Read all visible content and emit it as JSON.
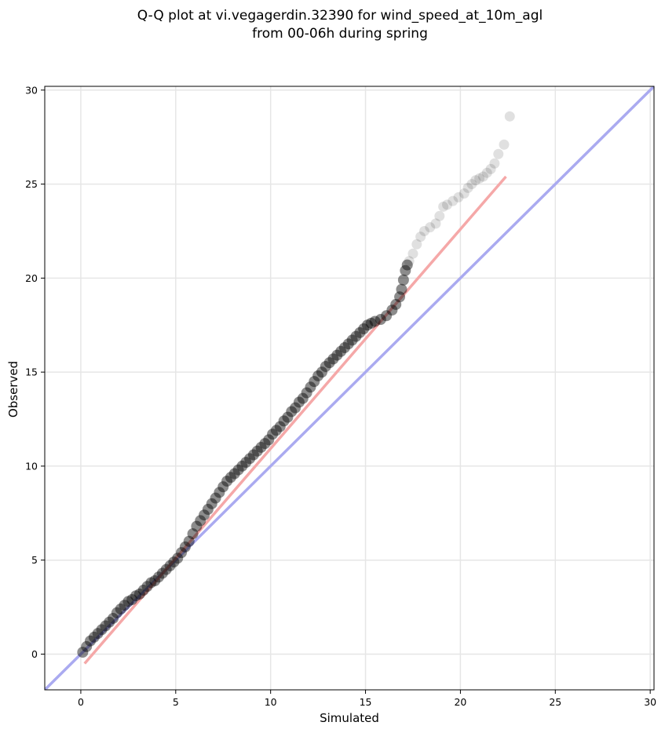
{
  "chart_data": {
    "type": "scatter",
    "title_lines": [
      "Q-Q plot at vi.vegagerdin.32390 for wind_speed_at_10m_agl",
      "from 00-06h during spring"
    ],
    "xlabel": "Simulated",
    "ylabel": "Observed",
    "xlim": [
      -1.9,
      30.2
    ],
    "ylim": [
      -1.9,
      30.2
    ],
    "xticks": [
      0,
      5,
      10,
      15,
      20,
      25,
      30
    ],
    "yticks": [
      0,
      5,
      10,
      15,
      20,
      25,
      30
    ],
    "grid": true,
    "point_color": "#000000",
    "identity_line": {
      "x": [
        -1.9,
        30.2
      ],
      "y": [
        -1.9,
        30.2
      ],
      "color": "#aaaaf0"
    },
    "fit_line": {
      "x": [
        0.2,
        22.4
      ],
      "y": [
        -0.5,
        25.4
      ],
      "color": "#f5a8a8"
    },
    "points": {
      "x": [
        0.1,
        0.3,
        0.5,
        0.7,
        0.9,
        1.1,
        1.3,
        1.5,
        1.7,
        1.9,
        2.1,
        2.3,
        2.5,
        2.7,
        2.9,
        3.1,
        3.3,
        3.5,
        3.7,
        3.9,
        4.1,
        4.3,
        4.5,
        4.7,
        4.9,
        5.1,
        5.3,
        5.5,
        5.7,
        5.9,
        6.1,
        6.3,
        6.5,
        6.7,
        6.9,
        7.1,
        7.3,
        7.5,
        7.7,
        7.9,
        8.1,
        8.3,
        8.5,
        8.7,
        8.9,
        9.1,
        9.3,
        9.5,
        9.7,
        9.9,
        10.1,
        10.3,
        10.5,
        10.7,
        10.9,
        11.1,
        11.3,
        11.5,
        11.7,
        11.9,
        12.1,
        12.3,
        12.5,
        12.7,
        12.9,
        13.1,
        13.3,
        13.5,
        13.7,
        13.9,
        14.1,
        14.3,
        14.5,
        14.7,
        14.9,
        15.1,
        15.3,
        15.5,
        15.8,
        16.1,
        16.4,
        16.6,
        16.8,
        16.9,
        17.0,
        17.1,
        17.2,
        17.3,
        17.5,
        17.7,
        17.9,
        18.1,
        18.4,
        18.7,
        18.9,
        19.1,
        19.3,
        19.6,
        19.9,
        20.2,
        20.4,
        20.6,
        20.8,
        21.0,
        21.2,
        21.4,
        21.6,
        21.8,
        22.0,
        22.3,
        22.6
      ],
      "y": [
        0.1,
        0.4,
        0.7,
        0.9,
        1.1,
        1.3,
        1.5,
        1.7,
        1.9,
        2.2,
        2.4,
        2.6,
        2.8,
        2.9,
        3.1,
        3.2,
        3.4,
        3.6,
        3.8,
        3.9,
        4.1,
        4.3,
        4.5,
        4.7,
        4.9,
        5.1,
        5.4,
        5.7,
        6.0,
        6.4,
        6.8,
        7.1,
        7.4,
        7.7,
        8.0,
        8.3,
        8.6,
        8.9,
        9.2,
        9.4,
        9.6,
        9.8,
        10.0,
        10.2,
        10.4,
        10.6,
        10.8,
        11.0,
        11.2,
        11.4,
        11.7,
        11.9,
        12.1,
        12.4,
        12.6,
        12.9,
        13.1,
        13.4,
        13.6,
        13.9,
        14.2,
        14.5,
        14.8,
        15.0,
        15.3,
        15.5,
        15.7,
        15.9,
        16.1,
        16.3,
        16.5,
        16.7,
        16.9,
        17.1,
        17.3,
        17.5,
        17.6,
        17.7,
        17.8,
        18.0,
        18.3,
        18.6,
        19.0,
        19.4,
        19.9,
        20.4,
        20.7,
        20.9,
        21.3,
        21.8,
        22.2,
        22.5,
        22.7,
        22.9,
        23.3,
        23.8,
        23.9,
        24.1,
        24.3,
        24.5,
        24.8,
        25.0,
        25.2,
        25.3,
        25.4,
        25.6,
        25.8,
        26.1,
        26.6,
        27.1,
        28.6
      ]
    }
  }
}
